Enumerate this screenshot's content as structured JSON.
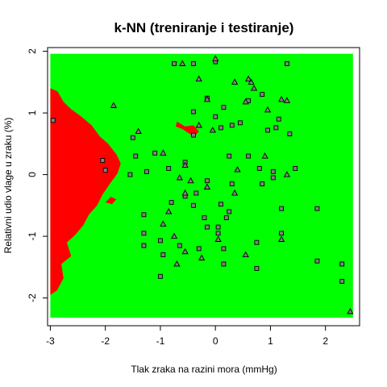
{
  "chart_data": {
    "type": "scatter",
    "title": "k-NN (treniranje i testiranje)",
    "xlabel": "Tlak zraka na razini mora (mmHg)",
    "ylabel": "Relativni udio vlage u zraku (%)",
    "xlim": [
      -3.05,
      2.62
    ],
    "ylim": [
      -2.45,
      2.06
    ],
    "x_ticks": [
      -3,
      -2,
      -1,
      0,
      1,
      2
    ],
    "y_ticks": [
      -2,
      -1,
      0,
      1,
      2
    ],
    "x_tick_labels": [
      "-3",
      "-2",
      "-1",
      "0",
      "1",
      "2"
    ],
    "y_tick_labels": [
      "-2",
      "-1",
      "0",
      "1",
      "2"
    ],
    "grid_extent": {
      "x": [
        -3.0,
        2.5
      ],
      "y": [
        -2.32,
        1.96
      ]
    },
    "colors": {
      "region_a": "#ff0000",
      "region_b": "#00ff00",
      "marker_edge": "#000000",
      "marker_fill": "#808080"
    },
    "decision_region": {
      "class": "red",
      "outline": [
        [
          -3.0,
          1.4
        ],
        [
          -2.87,
          1.35
        ],
        [
          -2.76,
          1.18
        ],
        [
          -2.62,
          1.06
        ],
        [
          -2.45,
          0.95
        ],
        [
          -2.25,
          0.8
        ],
        [
          -2.1,
          0.62
        ],
        [
          -1.95,
          0.5
        ],
        [
          -1.8,
          0.33
        ],
        [
          -1.72,
          0.18
        ],
        [
          -1.78,
          0.02
        ],
        [
          -1.92,
          -0.15
        ],
        [
          -2.05,
          -0.32
        ],
        [
          -2.15,
          -0.5
        ],
        [
          -2.3,
          -0.65
        ],
        [
          -2.4,
          -0.82
        ],
        [
          -2.55,
          -0.98
        ],
        [
          -2.7,
          -1.1
        ],
        [
          -2.62,
          -1.32
        ],
        [
          -2.8,
          -1.45
        ],
        [
          -2.76,
          -1.68
        ],
        [
          -2.88,
          -1.88
        ],
        [
          -3.0,
          -1.95
        ]
      ],
      "islands": [
        [
          [
            -0.7,
            0.86
          ],
          [
            -0.55,
            0.78
          ],
          [
            -0.4,
            0.8
          ],
          [
            -0.3,
            0.7
          ],
          [
            -0.38,
            0.62
          ],
          [
            -0.5,
            0.68
          ],
          [
            -0.6,
            0.74
          ],
          [
            -0.72,
            0.78
          ]
        ],
        [
          [
            -2.0,
            -0.45
          ],
          [
            -1.88,
            -0.48
          ],
          [
            -1.8,
            -0.4
          ],
          [
            -1.9,
            -0.36
          ]
        ]
      ]
    },
    "series": [
      {
        "marker": "square",
        "points": [
          [
            -0.75,
            1.8
          ],
          [
            -0.4,
            1.8
          ],
          [
            -0.4,
            1.02
          ],
          [
            -0.4,
            0.64
          ],
          [
            -0.15,
            1.24
          ],
          [
            0.0,
            1.83
          ],
          [
            0.0,
            0.94
          ],
          [
            0.1,
            0.76
          ],
          [
            0.15,
            1.09
          ],
          [
            0.3,
            0.8
          ],
          [
            0.45,
            0.84
          ],
          [
            0.6,
            1.2
          ],
          [
            0.6,
            0.3
          ],
          [
            0.8,
            0.1
          ],
          [
            0.85,
            1.3
          ],
          [
            0.95,
            0.72
          ],
          [
            1.1,
            0.76
          ],
          [
            1.15,
            0.9
          ],
          [
            1.3,
            1.8
          ],
          [
            1.35,
            0.66
          ],
          [
            1.45,
            0.1
          ],
          [
            1.05,
            -0.05
          ],
          [
            1.05,
            0.05
          ],
          [
            0.85,
            -0.15
          ],
          [
            0.3,
            -0.15
          ],
          [
            0.25,
            0.3
          ],
          [
            0.25,
            -0.6
          ],
          [
            0.1,
            -0.48
          ],
          [
            -0.15,
            -0.1
          ],
          [
            -0.35,
            -0.3
          ],
          [
            -0.4,
            -0.5
          ],
          [
            -0.55,
            -0.35
          ],
          [
            -0.8,
            -0.45
          ],
          [
            -0.85,
            0.1
          ],
          [
            -1.1,
            0.35
          ],
          [
            -1.25,
            0.05
          ],
          [
            -1.45,
            0.3
          ],
          [
            -1.5,
            0.6
          ],
          [
            -1.55,
            0.0
          ],
          [
            -1.3,
            -0.65
          ],
          [
            -1.3,
            -0.95
          ],
          [
            -1.3,
            -1.15
          ],
          [
            -1.0,
            -1.07
          ],
          [
            -0.95,
            -1.3
          ],
          [
            -0.65,
            -1.15
          ],
          [
            -0.3,
            -1.2
          ],
          [
            -0.2,
            -0.7
          ],
          [
            -0.15,
            -0.85
          ],
          [
            0.05,
            -0.85
          ],
          [
            0.05,
            -0.95
          ],
          [
            0.2,
            -0.7
          ],
          [
            0.15,
            -1.2
          ],
          [
            0.15,
            -1.45
          ],
          [
            0.75,
            -1.1
          ],
          [
            0.75,
            -1.52
          ],
          [
            1.2,
            -0.55
          ],
          [
            1.2,
            -0.95
          ],
          [
            1.85,
            -1.4
          ],
          [
            1.85,
            -0.55
          ],
          [
            2.3,
            -1.45
          ],
          [
            2.3,
            -1.73
          ],
          [
            -2.95,
            0.88
          ],
          [
            -2.0,
            0.07
          ],
          [
            -2.05,
            0.23
          ],
          [
            -1.0,
            -1.65
          ],
          [
            -0.55,
            0.2
          ]
        ]
      },
      {
        "marker": "triangle",
        "points": [
          [
            -0.6,
            1.8
          ],
          [
            -0.3,
            1.55
          ],
          [
            -0.15,
            1.22
          ],
          [
            0.0,
            1.88
          ],
          [
            0.35,
            1.5
          ],
          [
            0.65,
            1.5
          ],
          [
            0.7,
            1.4
          ],
          [
            0.55,
            1.18
          ],
          [
            0.95,
            1.05
          ],
          [
            1.2,
            1.22
          ],
          [
            1.3,
            1.2
          ],
          [
            0.9,
            0.3
          ],
          [
            1.3,
            0.0
          ],
          [
            0.4,
            0.08
          ],
          [
            0.35,
            -0.3
          ],
          [
            -0.15,
            -0.2
          ],
          [
            -0.55,
            0.15
          ],
          [
            -0.65,
            -0.05
          ],
          [
            -0.85,
            -0.6
          ],
          [
            -0.95,
            -0.8
          ],
          [
            -0.55,
            -1.25
          ],
          [
            -0.25,
            -1.35
          ],
          [
            0.05,
            -1.05
          ],
          [
            0.55,
            -1.3
          ],
          [
            1.2,
            -1.05
          ],
          [
            -0.55,
            -0.3
          ],
          [
            -0.05,
            0.72
          ],
          [
            -0.3,
            0.8
          ],
          [
            -1.4,
            0.7
          ],
          [
            -1.85,
            1.12
          ],
          [
            -0.75,
            -1.0
          ],
          [
            -0.7,
            -1.45
          ],
          [
            -0.95,
            0.35
          ],
          [
            0.6,
            1.55
          ],
          [
            2.45,
            -2.22
          ],
          [
            -0.45,
            -0.1
          ]
        ]
      }
    ]
  }
}
